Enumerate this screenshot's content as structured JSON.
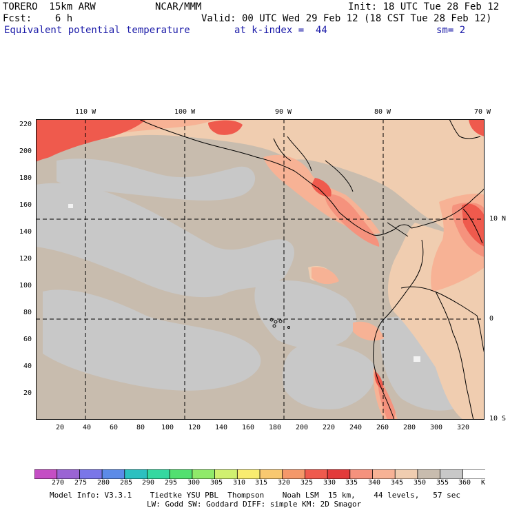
{
  "header": {
    "model": "TORERO  15km ARW",
    "agency": "NCAR/MMM",
    "init": "Init: 18 UTC Tue 28 Feb 12",
    "fcst": "Fcst:    6 h",
    "valid": "Valid: 00 UTC Wed 29 Feb 12 (18 CST Tue 28 Feb 12)",
    "field": "Equivalent potential temperature",
    "level": "at k-index =  44",
    "smooth": "sm= 2"
  },
  "map": {
    "top_lon_labels": [
      "110 W",
      "100 W",
      "90 W",
      "80 W",
      "70 W"
    ],
    "right_lat_labels": [
      "10 N",
      "0",
      "10 S"
    ],
    "y_ticks": [
      "220",
      "200",
      "180",
      "160",
      "140",
      "120",
      "100",
      "80",
      "60",
      "40",
      "20"
    ],
    "x_ticks": [
      "20",
      "40",
      "60",
      "80",
      "100",
      "120",
      "140",
      "160",
      "180",
      "200",
      "220",
      "240",
      "260",
      "280",
      "300",
      "320"
    ],
    "fill_colors": {
      "light_grey": "#c8c8c8",
      "grey_tan": "#c8bcae",
      "tan": "#f0cdb0",
      "salmon_light": "#f7b295",
      "salmon": "#f5927d",
      "red": "#ef5a4d",
      "red_dark": "#e33b3b",
      "white": "#f2f2f2"
    }
  },
  "colorbar": {
    "labels": [
      "270",
      "275",
      "280",
      "285",
      "290",
      "295",
      "300",
      "305",
      "310",
      "315",
      "320",
      "325",
      "330",
      "335",
      "340",
      "345",
      "350",
      "355",
      "360"
    ],
    "unit": "K",
    "colors": [
      "#c44ec4",
      "#9a64d4",
      "#7a76e8",
      "#5c8be8",
      "#2cc0c0",
      "#34d8a0",
      "#52e070",
      "#90ea6a",
      "#d0f070",
      "#f8ec70",
      "#f8c870",
      "#f4986a",
      "#ef5a4d",
      "#e33b3b",
      "#f5927d",
      "#f7b295",
      "#f0cdb0",
      "#c8bcae",
      "#c8c8c8",
      "#ffffff"
    ]
  },
  "footer": {
    "line1": "Model Info: V3.3.1    Tiedtke YSU PBL  Thompson    Noah LSM  15 km,    44 levels,   57 sec",
    "line2": "LW: Godd SW: Goddard DIFF: simple KM: 2D Smagor"
  }
}
